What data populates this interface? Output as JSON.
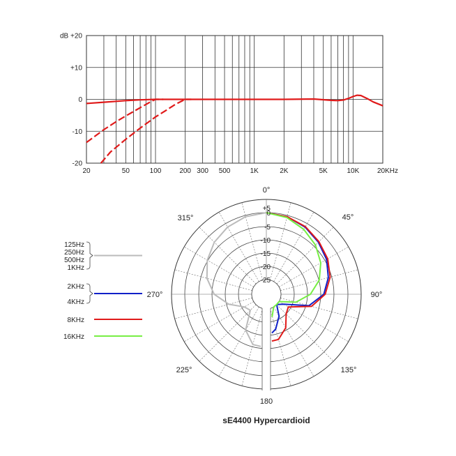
{
  "chart_data": [
    {
      "type": "line",
      "x_scale": "log",
      "xlim": [
        20,
        20000
      ],
      "ylim": [
        -20,
        20
      ],
      "grid": true,
      "y_unit": "dB",
      "y_ticks": [
        {
          "value": 20,
          "label": "+20"
        },
        {
          "value": 10,
          "label": "+10"
        },
        {
          "value": 0,
          "label": "0"
        },
        {
          "value": -10,
          "label": "-10"
        },
        {
          "value": -20,
          "label": "-20"
        }
      ],
      "x_ticks": [
        {
          "value": 20,
          "label": "20"
        },
        {
          "value": 50,
          "label": "50"
        },
        {
          "value": 100,
          "label": "100"
        },
        {
          "value": 200,
          "label": "200"
        },
        {
          "value": 300,
          "label": "300"
        },
        {
          "value": 500,
          "label": "500"
        },
        {
          "value": 1000,
          "label": "1K"
        },
        {
          "value": 2000,
          "label": "2K"
        },
        {
          "value": 5000,
          "label": "5K"
        },
        {
          "value": 10000,
          "label": "10K"
        },
        {
          "value": 20000,
          "label": "20KHz"
        }
      ],
      "series": [
        {
          "style": "solid",
          "color": "#e01a1a",
          "x": [
            20,
            30,
            50,
            70,
            100,
            200,
            500,
            1000,
            2000,
            4000,
            6000,
            7000,
            8000,
            9000,
            10000,
            11000,
            12000,
            14000,
            16000,
            20000
          ],
          "y": [
            -1.3,
            -0.9,
            -0.4,
            -0.15,
            0,
            0,
            0,
            0,
            0,
            0.1,
            -0.3,
            -0.4,
            -0.2,
            0.3,
            0.9,
            1.3,
            1.2,
            0.2,
            -0.8,
            -2
          ]
        },
        {
          "style": "dashed",
          "color": "#e01a1a",
          "x": [
            20,
            30,
            40,
            50,
            60,
            70,
            80,
            90,
            100,
            120
          ],
          "y": [
            -13.5,
            -9.5,
            -7,
            -5.2,
            -3.8,
            -2.6,
            -1.6,
            -0.7,
            0,
            0
          ]
        },
        {
          "style": "dashed",
          "color": "#e01a1a",
          "x": [
            28,
            35,
            50,
            70,
            100,
            130,
            160,
            200,
            230
          ],
          "y": [
            -20,
            -16.5,
            -12.5,
            -9,
            -5.5,
            -3.3,
            -1.5,
            0,
            0
          ]
        }
      ]
    },
    {
      "type": "polar",
      "r_unit": "dB",
      "r_range": [
        -25,
        5
      ],
      "rings": [
        "+5",
        "0",
        "-5",
        "-10",
        "-15",
        "-20",
        "-25"
      ],
      "angle_labels": [
        {
          "deg": 0,
          "label": "0°"
        },
        {
          "deg": 45,
          "label": "45°"
        },
        {
          "deg": 90,
          "label": "90°"
        },
        {
          "deg": 135,
          "label": "135°"
        },
        {
          "deg": 180,
          "label": "180"
        },
        {
          "deg": 225,
          "label": "225°"
        },
        {
          "deg": 270,
          "label": "270°"
        },
        {
          "deg": 315,
          "label": "315°"
        }
      ],
      "series": [
        {
          "name": "125Hz / 250Hz / 500Hz / 1KHz",
          "color": "#bbbbbb",
          "side": "left",
          "angles": [
            0,
            15,
            30,
            45,
            60,
            75,
            90,
            105,
            120,
            135,
            150,
            165,
            180
          ],
          "r_db": [
            0,
            -0.5,
            -1.5,
            -3,
            -5,
            -7.5,
            -11,
            -16,
            -21,
            -22,
            -15,
            -11,
            -11
          ]
        },
        {
          "name": "2KHz / 4KHz",
          "color": "#1020c8",
          "side": "right",
          "angles": [
            0,
            15,
            30,
            45,
            60,
            75,
            90,
            105,
            120,
            135,
            150,
            165,
            180
          ],
          "r_db": [
            0,
            -0.5,
            -1.5,
            -3,
            -4.5,
            -6.5,
            -9,
            -14,
            -23,
            -25,
            -21,
            -17,
            -16
          ]
        },
        {
          "name": "8KHz",
          "color": "#e01a1a",
          "side": "right",
          "angles": [
            0,
            15,
            30,
            45,
            60,
            75,
            90,
            105,
            120,
            135,
            150,
            165,
            180
          ],
          "r_db": [
            0,
            -0.5,
            -1.3,
            -2.7,
            -4,
            -5.8,
            -8.5,
            -13,
            -21,
            -20,
            -16,
            -13,
            -13
          ]
        },
        {
          "name": "16KHz",
          "color": "#77ee44",
          "side": "right",
          "angles": [
            0,
            15,
            30,
            45,
            60,
            75,
            90,
            105,
            120,
            135,
            150,
            165,
            180
          ],
          "r_db": [
            0,
            -0.8,
            -2.5,
            -4.5,
            -7,
            -10,
            -14,
            -19,
            -25,
            -25,
            -25,
            -22,
            -22
          ]
        }
      ]
    }
  ],
  "legend": [
    {
      "lines": [
        "125Hz",
        "250Hz",
        "500Hz",
        "1KHz"
      ],
      "color": "#bbbbbb"
    },
    {
      "lines": [
        "2KHz",
        "4KHz"
      ],
      "color": "#1020c8"
    },
    {
      "lines": [
        "8KHz"
      ],
      "color": "#e01a1a"
    },
    {
      "lines": [
        "16KHz"
      ],
      "color": "#77ee44"
    }
  ],
  "caption": "sE4400  Hypercardioid"
}
